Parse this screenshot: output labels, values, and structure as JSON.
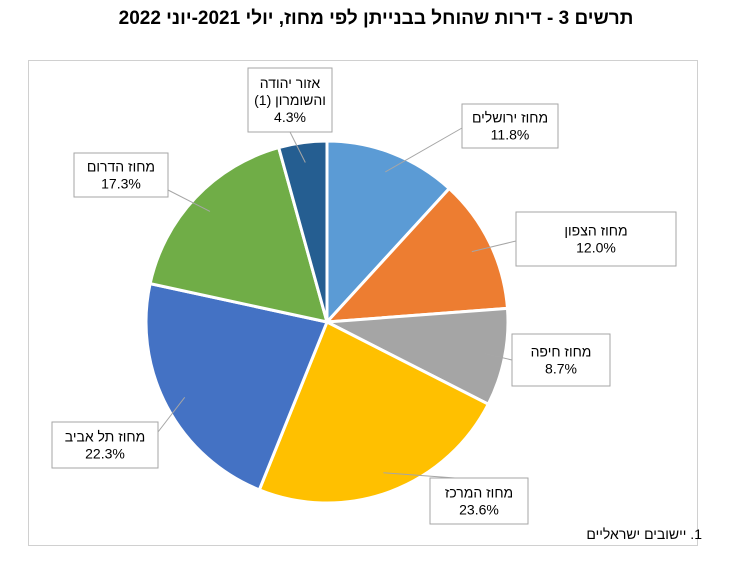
{
  "title": "תרשים 3 - דירות שהוחל בבנייתן לפי מחוז, יולי 2021-יוני 2022",
  "footnote": "1. יישובים ישראליים",
  "chart_data": {
    "type": "pie",
    "title": "תרשים 3 - דירות שהוחל בבנייתן לפי מחוז, יולי 2021-יוני 2022",
    "start_angle": 0,
    "direction": "clockwise",
    "slices": [
      {
        "name": "מחוז ירושלים",
        "label_lines": [
          "מחוז ירושלים"
        ],
        "value": 11.8,
        "display": "11.8%",
        "color": "#5B9BD5"
      },
      {
        "name": "מחוז הצפון",
        "label_lines": [
          "מחוז הצפון"
        ],
        "value": 12.0,
        "display": "12.0%",
        "color": "#ED7D31"
      },
      {
        "name": "מחוז חיפה",
        "label_lines": [
          "מחוז חיפה"
        ],
        "value": 8.7,
        "display": "8.7%",
        "color": "#A5A5A5"
      },
      {
        "name": "מחוז המרכז",
        "label_lines": [
          "מחוז המרכז"
        ],
        "value": 23.6,
        "display": "23.6%",
        "color": "#FFC000"
      },
      {
        "name": "מחוז תל אביב",
        "label_lines": [
          "מחוז תל אביב"
        ],
        "value": 22.3,
        "display": "22.3%",
        "color": "#4472C4"
      },
      {
        "name": "מחוז הדרום",
        "label_lines": [
          "מחוז הדרום"
        ],
        "value": 17.3,
        "display": "17.3%",
        "color": "#70AD47"
      },
      {
        "name": "אזור יהודה והשומרון (1)",
        "label_lines": [
          "אזור יהודה",
          "והשומרון (1)"
        ],
        "value": 4.3,
        "display": "4.3%",
        "color": "#255E91"
      }
    ]
  }
}
